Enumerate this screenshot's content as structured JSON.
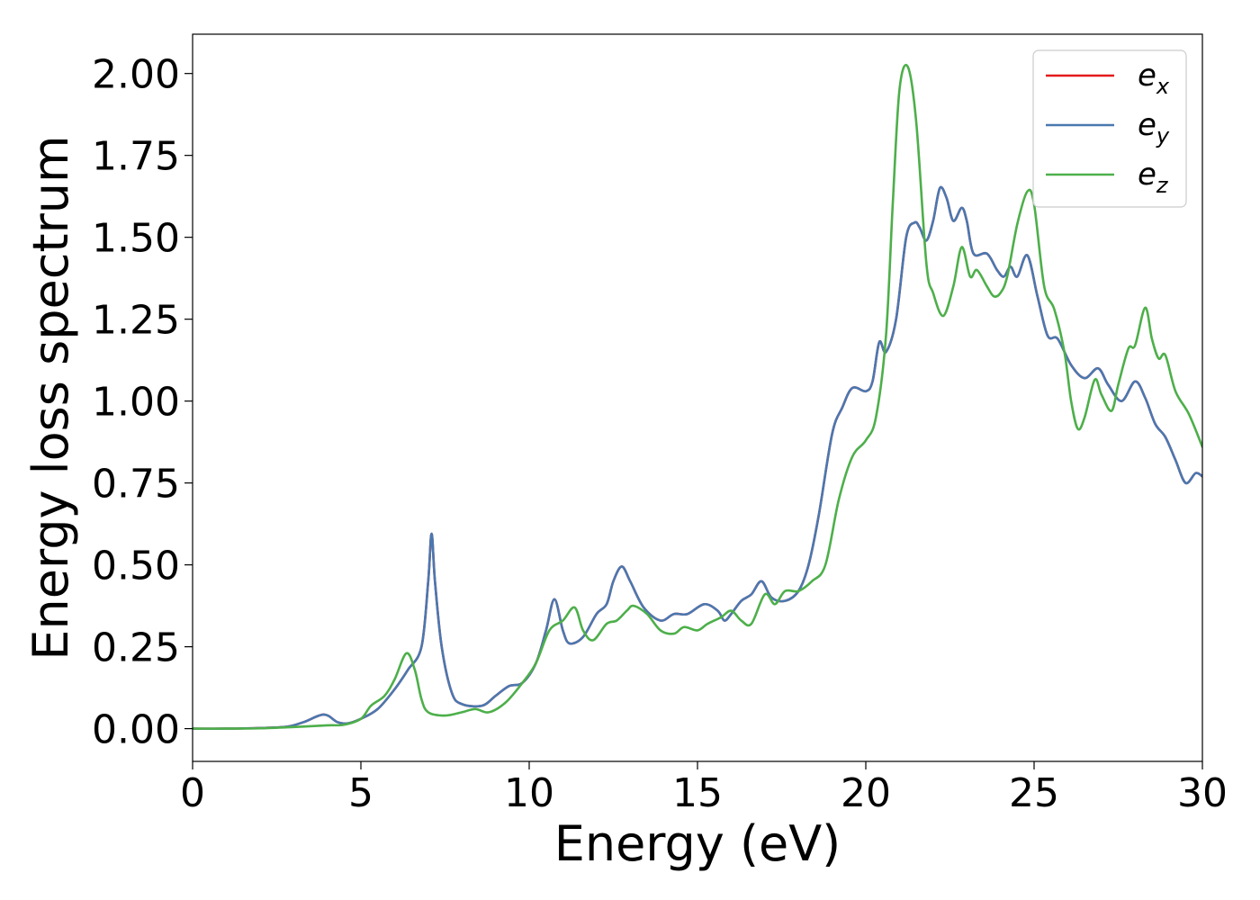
{
  "chart_data": {
    "type": "line",
    "xlabel": "Energy (eV)",
    "ylabel": "Energy loss spectrum",
    "xlim": [
      0,
      30
    ],
    "ylim": [
      -0.1,
      2.12
    ],
    "xticks": [
      0,
      5,
      10,
      15,
      20,
      25,
      30
    ],
    "yticks": [
      0.0,
      0.25,
      0.5,
      0.75,
      1.0,
      1.25,
      1.5,
      1.75,
      2.0
    ],
    "xtick_labels": [
      "0",
      "5",
      "10",
      "15",
      "20",
      "25",
      "30"
    ],
    "ytick_labels": [
      "0.00",
      "0.25",
      "0.50",
      "0.75",
      "1.00",
      "1.25",
      "1.50",
      "1.75",
      "2.00"
    ],
    "grid": false,
    "legend_position": "top-right",
    "series": [
      {
        "name": "e",
        "subscript": "x",
        "color": "#e41a1c",
        "points": [
          [
            0,
            0
          ],
          [
            1,
            0
          ],
          [
            2,
            0.002
          ],
          [
            2.8,
            0.006
          ],
          [
            3.3,
            0.02
          ],
          [
            3.9,
            0.043
          ],
          [
            4.3,
            0.02
          ],
          [
            4.6,
            0.016
          ],
          [
            5.0,
            0.03
          ],
          [
            5.5,
            0.06
          ],
          [
            6.0,
            0.12
          ],
          [
            6.4,
            0.18
          ],
          [
            6.8,
            0.25
          ],
          [
            7.0,
            0.45
          ],
          [
            7.1,
            0.595
          ],
          [
            7.2,
            0.45
          ],
          [
            7.4,
            0.25
          ],
          [
            7.7,
            0.11
          ],
          [
            8.0,
            0.075
          ],
          [
            8.6,
            0.07
          ],
          [
            9.0,
            0.1
          ],
          [
            9.4,
            0.13
          ],
          [
            9.8,
            0.14
          ],
          [
            10.2,
            0.2
          ],
          [
            10.5,
            0.3
          ],
          [
            10.75,
            0.395
          ],
          [
            11.0,
            0.3
          ],
          [
            11.2,
            0.26
          ],
          [
            11.6,
            0.28
          ],
          [
            12.0,
            0.35
          ],
          [
            12.3,
            0.38
          ],
          [
            12.5,
            0.45
          ],
          [
            12.75,
            0.495
          ],
          [
            13.0,
            0.45
          ],
          [
            13.4,
            0.37
          ],
          [
            13.9,
            0.33
          ],
          [
            14.3,
            0.35
          ],
          [
            14.7,
            0.35
          ],
          [
            15.2,
            0.38
          ],
          [
            15.6,
            0.36
          ],
          [
            15.8,
            0.33
          ],
          [
            16.0,
            0.35
          ],
          [
            16.3,
            0.39
          ],
          [
            16.6,
            0.41
          ],
          [
            16.9,
            0.45
          ],
          [
            17.2,
            0.4
          ],
          [
            17.6,
            0.39
          ],
          [
            18.0,
            0.42
          ],
          [
            18.3,
            0.5
          ],
          [
            18.6,
            0.65
          ],
          [
            19.0,
            0.9
          ],
          [
            19.3,
            0.98
          ],
          [
            19.6,
            1.04
          ],
          [
            20.0,
            1.03
          ],
          [
            20.2,
            1.06
          ],
          [
            20.4,
            1.18
          ],
          [
            20.6,
            1.15
          ],
          [
            20.9,
            1.25
          ],
          [
            21.2,
            1.5
          ],
          [
            21.45,
            1.545
          ],
          [
            21.6,
            1.53
          ],
          [
            21.8,
            1.49
          ],
          [
            22.0,
            1.55
          ],
          [
            22.2,
            1.65
          ],
          [
            22.4,
            1.62
          ],
          [
            22.6,
            1.55
          ],
          [
            22.85,
            1.59
          ],
          [
            23.0,
            1.55
          ],
          [
            23.2,
            1.45
          ],
          [
            23.6,
            1.45
          ],
          [
            23.9,
            1.4
          ],
          [
            24.1,
            1.38
          ],
          [
            24.3,
            1.41
          ],
          [
            24.5,
            1.38
          ],
          [
            24.8,
            1.445
          ],
          [
            25.1,
            1.32
          ],
          [
            25.4,
            1.2
          ],
          [
            25.7,
            1.19
          ],
          [
            26.1,
            1.11
          ],
          [
            26.5,
            1.07
          ],
          [
            26.9,
            1.1
          ],
          [
            27.2,
            1.05
          ],
          [
            27.6,
            1.0
          ],
          [
            28.0,
            1.06
          ],
          [
            28.3,
            1.01
          ],
          [
            28.6,
            0.93
          ],
          [
            28.9,
            0.89
          ],
          [
            29.2,
            0.82
          ],
          [
            29.5,
            0.75
          ],
          [
            29.8,
            0.78
          ],
          [
            30.0,
            0.77
          ]
        ]
      },
      {
        "name": "e",
        "subscript": "y",
        "color": "#4a78b0",
        "points": [
          [
            0,
            0
          ],
          [
            1,
            0
          ],
          [
            2,
            0.002
          ],
          [
            2.8,
            0.006
          ],
          [
            3.3,
            0.02
          ],
          [
            3.9,
            0.043
          ],
          [
            4.3,
            0.02
          ],
          [
            4.6,
            0.016
          ],
          [
            5.0,
            0.03
          ],
          [
            5.5,
            0.06
          ],
          [
            6.0,
            0.12
          ],
          [
            6.4,
            0.18
          ],
          [
            6.8,
            0.25
          ],
          [
            7.0,
            0.45
          ],
          [
            7.1,
            0.595
          ],
          [
            7.2,
            0.45
          ],
          [
            7.4,
            0.25
          ],
          [
            7.7,
            0.11
          ],
          [
            8.0,
            0.075
          ],
          [
            8.6,
            0.07
          ],
          [
            9.0,
            0.1
          ],
          [
            9.4,
            0.13
          ],
          [
            9.8,
            0.14
          ],
          [
            10.2,
            0.2
          ],
          [
            10.5,
            0.3
          ],
          [
            10.75,
            0.395
          ],
          [
            11.0,
            0.3
          ],
          [
            11.2,
            0.26
          ],
          [
            11.6,
            0.28
          ],
          [
            12.0,
            0.35
          ],
          [
            12.3,
            0.38
          ],
          [
            12.5,
            0.45
          ],
          [
            12.75,
            0.495
          ],
          [
            13.0,
            0.45
          ],
          [
            13.4,
            0.37
          ],
          [
            13.9,
            0.33
          ],
          [
            14.3,
            0.35
          ],
          [
            14.7,
            0.35
          ],
          [
            15.2,
            0.38
          ],
          [
            15.6,
            0.36
          ],
          [
            15.8,
            0.33
          ],
          [
            16.0,
            0.35
          ],
          [
            16.3,
            0.39
          ],
          [
            16.6,
            0.41
          ],
          [
            16.9,
            0.45
          ],
          [
            17.2,
            0.4
          ],
          [
            17.6,
            0.39
          ],
          [
            18.0,
            0.42
          ],
          [
            18.3,
            0.5
          ],
          [
            18.6,
            0.65
          ],
          [
            19.0,
            0.9
          ],
          [
            19.3,
            0.98
          ],
          [
            19.6,
            1.04
          ],
          [
            20.0,
            1.03
          ],
          [
            20.2,
            1.06
          ],
          [
            20.4,
            1.18
          ],
          [
            20.6,
            1.15
          ],
          [
            20.9,
            1.25
          ],
          [
            21.2,
            1.5
          ],
          [
            21.45,
            1.545
          ],
          [
            21.6,
            1.53
          ],
          [
            21.8,
            1.49
          ],
          [
            22.0,
            1.55
          ],
          [
            22.2,
            1.65
          ],
          [
            22.4,
            1.62
          ],
          [
            22.6,
            1.55
          ],
          [
            22.85,
            1.59
          ],
          [
            23.0,
            1.55
          ],
          [
            23.2,
            1.45
          ],
          [
            23.6,
            1.45
          ],
          [
            23.9,
            1.4
          ],
          [
            24.1,
            1.38
          ],
          [
            24.3,
            1.41
          ],
          [
            24.5,
            1.38
          ],
          [
            24.8,
            1.445
          ],
          [
            25.1,
            1.32
          ],
          [
            25.4,
            1.2
          ],
          [
            25.7,
            1.19
          ],
          [
            26.1,
            1.11
          ],
          [
            26.5,
            1.07
          ],
          [
            26.9,
            1.1
          ],
          [
            27.2,
            1.05
          ],
          [
            27.6,
            1.0
          ],
          [
            28.0,
            1.06
          ],
          [
            28.3,
            1.01
          ],
          [
            28.6,
            0.93
          ],
          [
            28.9,
            0.89
          ],
          [
            29.2,
            0.82
          ],
          [
            29.5,
            0.75
          ],
          [
            29.8,
            0.78
          ],
          [
            30.0,
            0.77
          ]
        ]
      },
      {
        "name": "e",
        "subscript": "z",
        "color": "#4daf4a",
        "points": [
          [
            0,
            0
          ],
          [
            1,
            0
          ],
          [
            2,
            0.001
          ],
          [
            3.0,
            0.005
          ],
          [
            4.0,
            0.01
          ],
          [
            4.5,
            0.012
          ],
          [
            5.0,
            0.03
          ],
          [
            5.3,
            0.07
          ],
          [
            5.7,
            0.1
          ],
          [
            6.0,
            0.15
          ],
          [
            6.35,
            0.23
          ],
          [
            6.6,
            0.18
          ],
          [
            6.8,
            0.09
          ],
          [
            7.0,
            0.05
          ],
          [
            7.5,
            0.04
          ],
          [
            8.0,
            0.05
          ],
          [
            8.4,
            0.06
          ],
          [
            8.8,
            0.05
          ],
          [
            9.3,
            0.08
          ],
          [
            9.8,
            0.14
          ],
          [
            10.2,
            0.2
          ],
          [
            10.6,
            0.3
          ],
          [
            11.0,
            0.33
          ],
          [
            11.35,
            0.37
          ],
          [
            11.6,
            0.3
          ],
          [
            11.9,
            0.27
          ],
          [
            12.3,
            0.32
          ],
          [
            12.6,
            0.33
          ],
          [
            12.9,
            0.36
          ],
          [
            13.1,
            0.375
          ],
          [
            13.5,
            0.35
          ],
          [
            13.9,
            0.3
          ],
          [
            14.3,
            0.29
          ],
          [
            14.6,
            0.31
          ],
          [
            15.0,
            0.3
          ],
          [
            15.3,
            0.32
          ],
          [
            15.7,
            0.34
          ],
          [
            16.0,
            0.36
          ],
          [
            16.3,
            0.33
          ],
          [
            16.6,
            0.32
          ],
          [
            17.0,
            0.41
          ],
          [
            17.3,
            0.38
          ],
          [
            17.6,
            0.42
          ],
          [
            18.0,
            0.42
          ],
          [
            18.4,
            0.45
          ],
          [
            18.8,
            0.5
          ],
          [
            19.2,
            0.7
          ],
          [
            19.6,
            0.83
          ],
          [
            20.0,
            0.88
          ],
          [
            20.3,
            0.95
          ],
          [
            20.6,
            1.2
          ],
          [
            20.8,
            1.6
          ],
          [
            21.0,
            1.95
          ],
          [
            21.25,
            2.02
          ],
          [
            21.5,
            1.85
          ],
          [
            21.8,
            1.42
          ],
          [
            22.0,
            1.33
          ],
          [
            22.3,
            1.26
          ],
          [
            22.6,
            1.35
          ],
          [
            22.85,
            1.47
          ],
          [
            23.1,
            1.38
          ],
          [
            23.3,
            1.4
          ],
          [
            23.6,
            1.35
          ],
          [
            23.8,
            1.32
          ],
          [
            24.0,
            1.33
          ],
          [
            24.2,
            1.38
          ],
          [
            24.5,
            1.54
          ],
          [
            24.8,
            1.64
          ],
          [
            25.0,
            1.6
          ],
          [
            25.3,
            1.35
          ],
          [
            25.6,
            1.28
          ],
          [
            25.9,
            1.15
          ],
          [
            26.1,
            1.0
          ],
          [
            26.3,
            0.915
          ],
          [
            26.5,
            0.95
          ],
          [
            26.8,
            1.065
          ],
          [
            27.0,
            1.02
          ],
          [
            27.3,
            0.97
          ],
          [
            27.5,
            1.05
          ],
          [
            27.8,
            1.16
          ],
          [
            28.0,
            1.17
          ],
          [
            28.3,
            1.285
          ],
          [
            28.5,
            1.19
          ],
          [
            28.7,
            1.13
          ],
          [
            28.9,
            1.14
          ],
          [
            29.2,
            1.03
          ],
          [
            29.6,
            0.96
          ],
          [
            30.0,
            0.86
          ]
        ]
      }
    ]
  }
}
